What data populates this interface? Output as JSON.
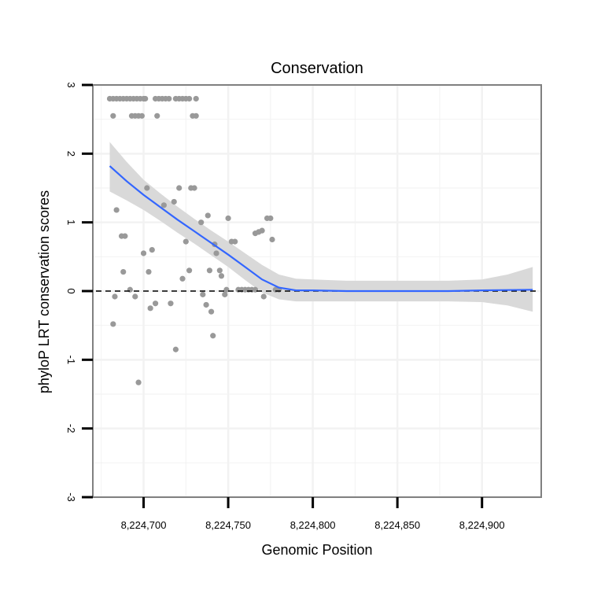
{
  "chart_data": {
    "type": "scatter",
    "title": "Conservation",
    "xlabel": "Genomic Position",
    "ylabel": "phyloP LRT conservation scores",
    "xlim": [
      8224670,
      8224935
    ],
    "ylim": [
      -3,
      3
    ],
    "x_ticks": [
      8224700,
      8224750,
      8224800,
      8224850,
      8224900
    ],
    "x_tick_labels": [
      "8,224,700",
      "8,224,750",
      "8,224,800",
      "8,224,850",
      "8,224,900"
    ],
    "y_ticks": [
      -3,
      -2,
      -1,
      0,
      1,
      2,
      3
    ],
    "y_tick_labels": [
      "-3",
      "-2",
      "-1",
      "0",
      "1",
      "2",
      "3"
    ],
    "grid": true,
    "reference_line": {
      "y": 0,
      "style": "dashed",
      "color": "#000000"
    },
    "colors": {
      "points": "#999999",
      "smooth_line": "#3366ff",
      "confidence_band": "#d9d9d9",
      "panel_border": "#808080",
      "grid": "#f2f2f2"
    },
    "series": [
      {
        "name": "phyloP scores",
        "points": [
          [
            8224680,
            2.8
          ],
          [
            8224682,
            2.8
          ],
          [
            8224684,
            2.8
          ],
          [
            8224686,
            2.8
          ],
          [
            8224688,
            2.8
          ],
          [
            8224690,
            2.8
          ],
          [
            8224692,
            2.8
          ],
          [
            8224694,
            2.8
          ],
          [
            8224696,
            2.8
          ],
          [
            8224698,
            2.8
          ],
          [
            8224700,
            2.8
          ],
          [
            8224701,
            2.8
          ],
          [
            8224707,
            2.8
          ],
          [
            8224709,
            2.8
          ],
          [
            8224711,
            2.8
          ],
          [
            8224713,
            2.8
          ],
          [
            8224715,
            2.8
          ],
          [
            8224719,
            2.8
          ],
          [
            8224721,
            2.8
          ],
          [
            8224723,
            2.8
          ],
          [
            8224725,
            2.8
          ],
          [
            8224727,
            2.8
          ],
          [
            8224731,
            2.8
          ],
          [
            8224682,
            2.55
          ],
          [
            8224693,
            2.55
          ],
          [
            8224695,
            2.55
          ],
          [
            8224697,
            2.55
          ],
          [
            8224699,
            2.55
          ],
          [
            8224708,
            2.55
          ],
          [
            8224729,
            2.55
          ],
          [
            8224731,
            2.55
          ],
          [
            8224684,
            1.18
          ],
          [
            8224687,
            0.8
          ],
          [
            8224689,
            0.8
          ],
          [
            8224688,
            0.28
          ],
          [
            8224683,
            -0.08
          ],
          [
            8224682,
            -0.48
          ],
          [
            8224692,
            0.02
          ],
          [
            8224695,
            -0.08
          ],
          [
            8224697,
            -1.33
          ],
          [
            8224700,
            0.55
          ],
          [
            8224702,
            1.5
          ],
          [
            8224703,
            0.28
          ],
          [
            8224704,
            -0.25
          ],
          [
            8224705,
            0.6
          ],
          [
            8224707,
            -0.18
          ],
          [
            8224712,
            1.25
          ],
          [
            8224716,
            -0.18
          ],
          [
            8224718,
            1.3
          ],
          [
            8224719,
            -0.85
          ],
          [
            8224721,
            1.5
          ],
          [
            8224723,
            0.18
          ],
          [
            8224725,
            0.72
          ],
          [
            8224727,
            0.3
          ],
          [
            8224728,
            1.5
          ],
          [
            8224730,
            1.5
          ],
          [
            8224734,
            1.0
          ],
          [
            8224735,
            -0.05
          ],
          [
            8224737,
            -0.2
          ],
          [
            8224738,
            1.1
          ],
          [
            8224739,
            0.3
          ],
          [
            8224740,
            -0.3
          ],
          [
            8224741,
            -0.65
          ],
          [
            8224742,
            0.68
          ],
          [
            8224743,
            0.55
          ],
          [
            8224745,
            0.3
          ],
          [
            8224746,
            0.22
          ],
          [
            8224748,
            -0.05
          ],
          [
            8224749,
            0.02
          ],
          [
            8224750,
            1.06
          ],
          [
            8224752,
            0.72
          ],
          [
            8224754,
            0.72
          ],
          [
            8224756,
            0.02
          ],
          [
            8224758,
            0.02
          ],
          [
            8224760,
            0.02
          ],
          [
            8224762,
            0.02
          ],
          [
            8224764,
            0.02
          ],
          [
            8224766,
            0.02
          ],
          [
            8224766,
            0.84
          ],
          [
            8224768,
            0.86
          ],
          [
            8224770,
            0.88
          ],
          [
            8224771,
            -0.08
          ],
          [
            8224773,
            1.06
          ],
          [
            8224775,
            1.06
          ],
          [
            8224776,
            0.75
          ],
          [
            8224778,
            0.02
          ],
          [
            8224780,
            0.02
          ]
        ]
      },
      {
        "name": "smooth fit",
        "line": [
          [
            8224680,
            1.82
          ],
          [
            8224690,
            1.6
          ],
          [
            8224700,
            1.4
          ],
          [
            8224710,
            1.22
          ],
          [
            8224720,
            1.04
          ],
          [
            8224730,
            0.87
          ],
          [
            8224740,
            0.7
          ],
          [
            8224750,
            0.53
          ],
          [
            8224760,
            0.35
          ],
          [
            8224770,
            0.17
          ],
          [
            8224780,
            0.05
          ],
          [
            8224790,
            0.01
          ],
          [
            8224800,
            0.01
          ],
          [
            8224820,
            0.0
          ],
          [
            8224840,
            0.0
          ],
          [
            8224860,
            0.0
          ],
          [
            8224880,
            0.0
          ],
          [
            8224900,
            0.01
          ],
          [
            8224930,
            0.02
          ]
        ],
        "band_upper": [
          [
            8224680,
            2.17
          ],
          [
            8224690,
            1.88
          ],
          [
            8224700,
            1.62
          ],
          [
            8224710,
            1.42
          ],
          [
            8224720,
            1.23
          ],
          [
            8224730,
            1.05
          ],
          [
            8224740,
            0.88
          ],
          [
            8224750,
            0.72
          ],
          [
            8224760,
            0.55
          ],
          [
            8224770,
            0.38
          ],
          [
            8224780,
            0.24
          ],
          [
            8224790,
            0.18
          ],
          [
            8224800,
            0.17
          ],
          [
            8224820,
            0.15
          ],
          [
            8224840,
            0.15
          ],
          [
            8224860,
            0.15
          ],
          [
            8224880,
            0.15
          ],
          [
            8224900,
            0.17
          ],
          [
            8224915,
            0.24
          ],
          [
            8224930,
            0.35
          ]
        ],
        "band_lower": [
          [
            8224680,
            1.45
          ],
          [
            8224690,
            1.32
          ],
          [
            8224700,
            1.18
          ],
          [
            8224710,
            1.02
          ],
          [
            8224720,
            0.85
          ],
          [
            8224730,
            0.69
          ],
          [
            8224740,
            0.52
          ],
          [
            8224750,
            0.35
          ],
          [
            8224760,
            0.16
          ],
          [
            8224770,
            -0.02
          ],
          [
            8224780,
            -0.12
          ],
          [
            8224790,
            -0.15
          ],
          [
            8224800,
            -0.15
          ],
          [
            8224820,
            -0.15
          ],
          [
            8224840,
            -0.15
          ],
          [
            8224860,
            -0.15
          ],
          [
            8224880,
            -0.15
          ],
          [
            8224900,
            -0.16
          ],
          [
            8224915,
            -0.21
          ],
          [
            8224930,
            -0.3
          ]
        ]
      }
    ]
  }
}
